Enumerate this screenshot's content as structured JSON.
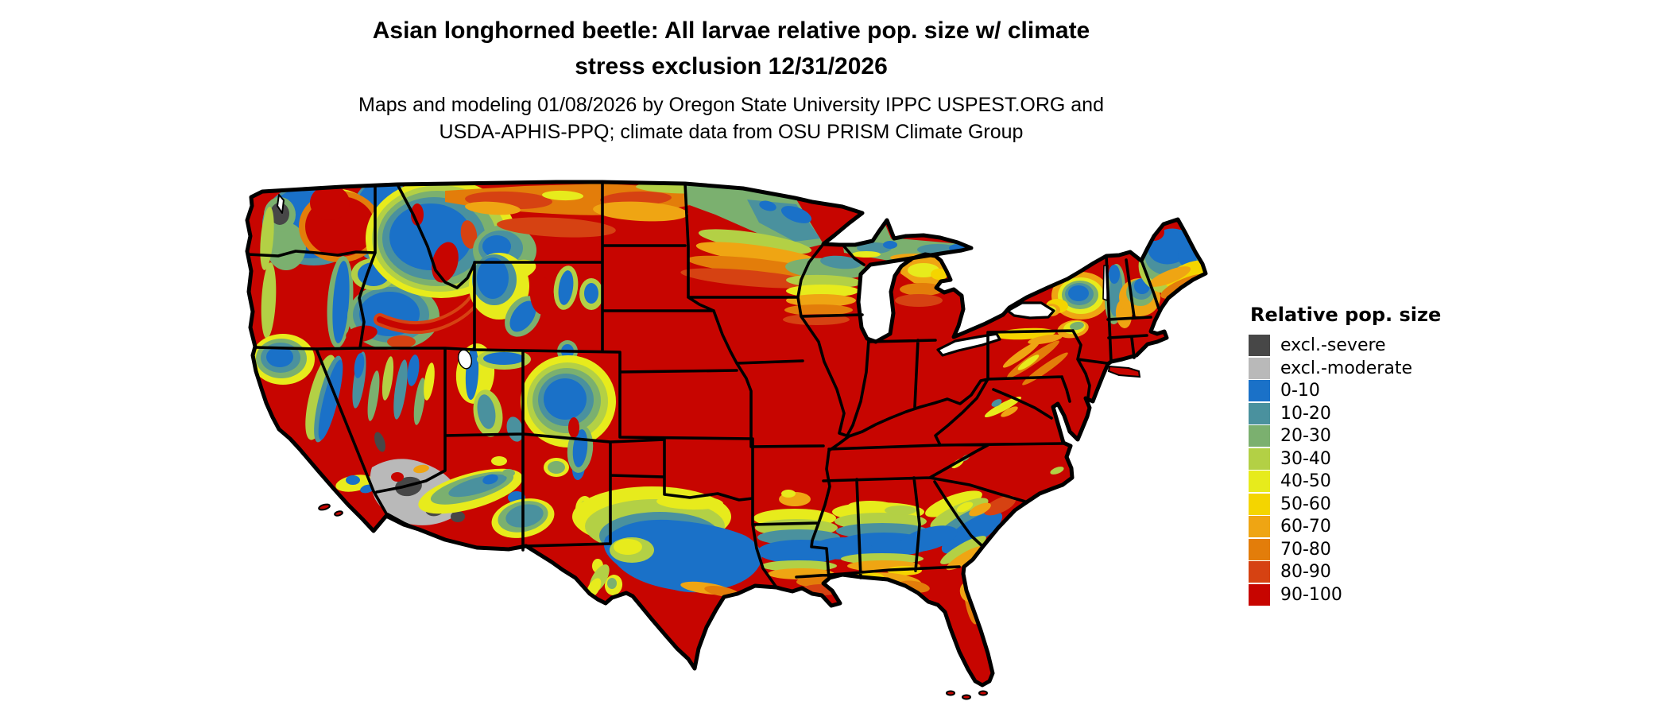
{
  "header": {
    "title_line1": "Asian longhorned beetle: All larvae relative pop. size w/ climate",
    "title_line2": "stress exclusion 12/31/2026",
    "subtitle_line1": "Maps and modeling 01/08/2026 by Oregon State University IPPC USPEST.ORG and",
    "subtitle_line2": "USDA-APHIS-PPQ; climate data from OSU PRISM Climate Group"
  },
  "legend": {
    "title": "Relative pop. size",
    "entries": [
      {
        "label": "excl.-severe",
        "color": "#474747"
      },
      {
        "label": "excl.-moderate",
        "color": "#b9b9b9"
      },
      {
        "label": "0-10",
        "color": "#1a71c8"
      },
      {
        "label": "10-20",
        "color": "#4a919e"
      },
      {
        "label": "20-30",
        "color": "#7bb06f"
      },
      {
        "label": "30-40",
        "color": "#b3d045"
      },
      {
        "label": "40-50",
        "color": "#e7eb1c"
      },
      {
        "label": "50-60",
        "color": "#f4d500"
      },
      {
        "label": "60-70",
        "color": "#efa513"
      },
      {
        "label": "70-80",
        "color": "#e37d0a"
      },
      {
        "label": "80-90",
        "color": "#d64212"
      },
      {
        "label": "90-100",
        "color": "#c70500"
      }
    ]
  },
  "map": {
    "region": "Contiguous United States",
    "kind": "raster choropleth with state borders",
    "dominant_class": "90-100",
    "base_color": "#c70500",
    "border_color": "#000000",
    "water_color": "#ffffff"
  }
}
